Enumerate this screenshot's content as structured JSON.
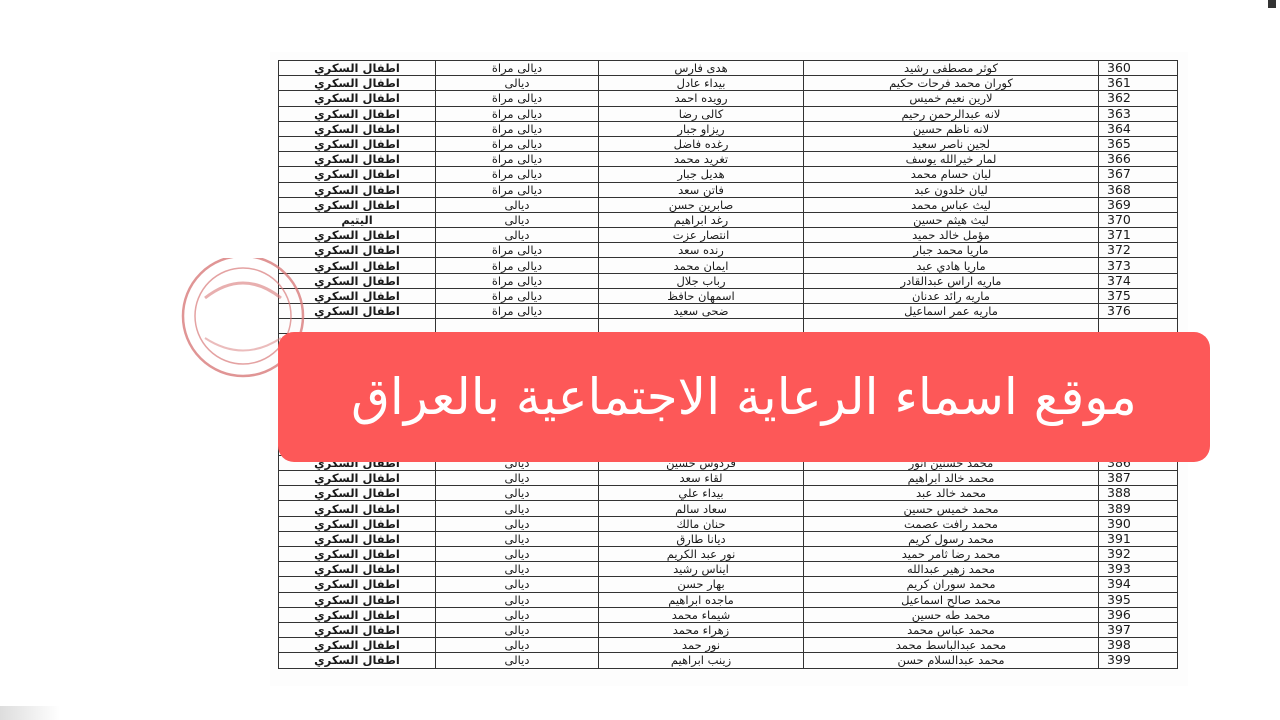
{
  "banner": {
    "title": "موقع اسماء الرعاية الاجتماعية بالعراق",
    "background": "#fd5858",
    "text_color": "#ffffff"
  },
  "stamp": {
    "type": "official-seal",
    "color": "#d87a7a"
  },
  "rows": [
    {
      "no": "360",
      "name": "كوثر مصطفى رشيد",
      "mother": "هدى فارس",
      "province": "ديالى مراة",
      "type": "اطفال السكري"
    },
    {
      "no": "361",
      "name": "كوران محمد فرحات حكيم",
      "mother": "بيداء عادل",
      "province": "ديالى",
      "type": "اطفال السكري"
    },
    {
      "no": "362",
      "name": "لارين نعيم خميس",
      "mother": "رويده احمد",
      "province": "ديالى مراة",
      "type": "اطفال السكري"
    },
    {
      "no": "363",
      "name": "لانه عبدالرحمن رحيم",
      "mother": "كالى رضا",
      "province": "ديالى مراة",
      "type": "اطفال السكري"
    },
    {
      "no": "364",
      "name": "لانه ناظم حسين",
      "mother": "ريزاو جبار",
      "province": "ديالى مراة",
      "type": "اطفال السكري"
    },
    {
      "no": "365",
      "name": "لجين ناصر سعيد",
      "mother": "رغده فاضل",
      "province": "ديالى مراة",
      "type": "اطفال السكري"
    },
    {
      "no": "366",
      "name": "لمار خيرالله يوسف",
      "mother": "تغريد محمد",
      "province": "ديالى مراة",
      "type": "اطفال السكري"
    },
    {
      "no": "367",
      "name": "ليان حسام محمد",
      "mother": "هديل جبار",
      "province": "ديالى مراة",
      "type": "اطفال السكري"
    },
    {
      "no": "368",
      "name": "ليان خلدون عبد",
      "mother": "فاتن سعد",
      "province": "ديالى مراة",
      "type": "اطفال السكري"
    },
    {
      "no": "369",
      "name": "ليث عباس محمد",
      "mother": "صابرين حسن",
      "province": "ديالى",
      "type": "اطفال السكري"
    },
    {
      "no": "370",
      "name": "ليث هيثم حسين",
      "mother": "رغد ابراهيم",
      "province": "ديالى",
      "type": "اليتيم"
    },
    {
      "no": "371",
      "name": "مؤمل خالد حميد",
      "mother": "انتصار عزت",
      "province": "ديالى",
      "type": "اطفال السكري"
    },
    {
      "no": "372",
      "name": "ماريا محمد جبار",
      "mother": "رنده سعد",
      "province": "ديالى مراة",
      "type": "اطفال السكري"
    },
    {
      "no": "373",
      "name": "ماريا هادي عبد",
      "mother": "ايمان محمد",
      "province": "ديالى مراة",
      "type": "اطفال السكري"
    },
    {
      "no": "374",
      "name": "ماريه اراس عبدالقادر",
      "mother": "رباب جلال",
      "province": "ديالى مراة",
      "type": "اطفال السكري"
    },
    {
      "no": "375",
      "name": "ماريه رائد عدنان",
      "mother": "اسمهان حافظ",
      "province": "ديالى مراة",
      "type": "اطفال السكري"
    },
    {
      "no": "376",
      "name": "ماريه عمر اسماعيل",
      "mother": "ضحى سعيد",
      "province": "ديالى مراة",
      "type": "اطفال السكري"
    },
    {
      "no": "386",
      "name": "محمد حسنين انور",
      "mother": "فردوس حسين",
      "province": "ديالى",
      "type": "اطفال السكري"
    },
    {
      "no": "387",
      "name": "محمد خالد ابراهيم",
      "mother": "لقاء سعد",
      "province": "ديالى",
      "type": "اطفال السكري"
    },
    {
      "no": "388",
      "name": "محمد خالد عبد",
      "mother": "بيداء علي",
      "province": "ديالى",
      "type": "اطفال السكري"
    },
    {
      "no": "389",
      "name": "محمد خميس حسين",
      "mother": "سعاد سالم",
      "province": "ديالى",
      "type": "اطفال السكري"
    },
    {
      "no": "390",
      "name": "محمد رافت عصمت",
      "mother": "حنان مالك",
      "province": "ديالى",
      "type": "اطفال السكري"
    },
    {
      "no": "391",
      "name": "محمد رسول كريم",
      "mother": "ديانا طارق",
      "province": "ديالى",
      "type": "اطفال السكري"
    },
    {
      "no": "392",
      "name": "محمد رضا ثامر حميد",
      "mother": "نور عبد الكريم",
      "province": "ديالى",
      "type": "اطفال السكري"
    },
    {
      "no": "393",
      "name": "محمد زهير عبدالله",
      "mother": "ايناس رشيد",
      "province": "ديالى",
      "type": "اطفال السكري"
    },
    {
      "no": "394",
      "name": "محمد سوران كريم",
      "mother": "بهار حسن",
      "province": "ديالى",
      "type": "اطفال السكري"
    },
    {
      "no": "395",
      "name": "محمد صالح اسماعيل",
      "mother": "ماجده ابراهيم",
      "province": "ديالى",
      "type": "اطفال السكري"
    },
    {
      "no": "396",
      "name": "محمد طه حسين",
      "mother": "شيماء محمد",
      "province": "ديالى",
      "type": "اطفال السكري"
    },
    {
      "no": "397",
      "name": "محمد عباس محمد",
      "mother": "زهراء محمد",
      "province": "ديالى",
      "type": "اطفال السكري"
    },
    {
      "no": "398",
      "name": "محمد عبدالباسط محمد",
      "mother": "نور حمد",
      "province": "ديالى",
      "type": "اطفال السكري"
    },
    {
      "no": "399",
      "name": "محمد عبدالسلام حسن",
      "mother": "زينب ابراهيم",
      "province": "ديالى",
      "type": "اطفال السكري"
    }
  ]
}
